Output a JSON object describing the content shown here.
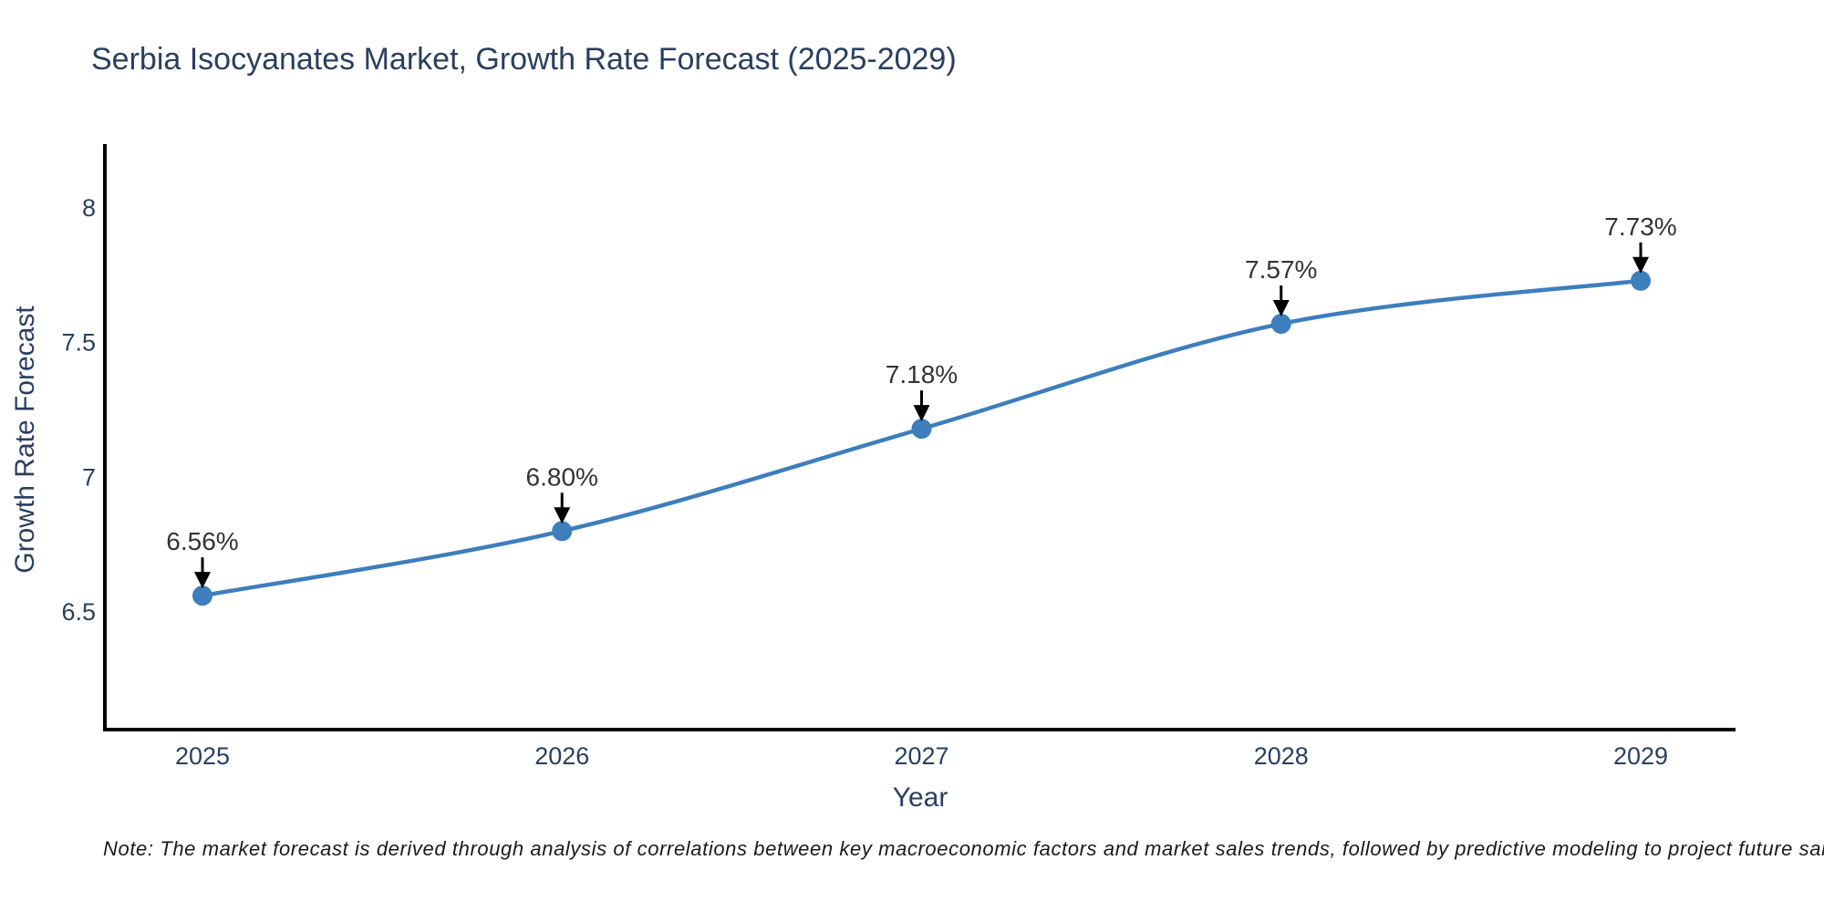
{
  "title": "Serbia Isocyanates Market, Growth Rate Forecast (2025-2029)",
  "note": "Note: The market forecast is derived through analysis of correlations between key macroeconomic factors and market sales trends, followed by predictive modeling to project future sales",
  "colors": {
    "line": "#3d7ebd",
    "marker": "#3d7ebd",
    "axis_line": "#000000",
    "title_text": "#2a3f5f",
    "tick_text": "#2a3f5f",
    "annotation_text": "#333333",
    "arrow": "#000000",
    "background": "#ffffff"
  },
  "chart_data": {
    "type": "line",
    "title": "Serbia Isocyanates Market, Growth Rate Forecast (2025-2029)",
    "xlabel": "Year",
    "ylabel": "Growth Rate Forecast",
    "x": [
      2025,
      2026,
      2027,
      2028,
      2029
    ],
    "series": [
      {
        "name": "Growth Rate Forecast",
        "values": [
          6.56,
          6.8,
          7.18,
          7.57,
          7.73
        ]
      }
    ],
    "point_labels": [
      "6.56%",
      "6.80%",
      "7.18%",
      "7.57%",
      "7.73%"
    ],
    "x_ticks": [
      2025,
      2026,
      2027,
      2028,
      2029
    ],
    "x_tick_labels": [
      "2025",
      "2026",
      "2027",
      "2028",
      "2029"
    ],
    "y_ticks": [
      6.5,
      7,
      7.5,
      8
    ],
    "y_tick_labels": [
      "6.5",
      "7",
      "7.5",
      "8"
    ],
    "xlim": [
      2024.7286,
      2029.2638
    ],
    "ylim": [
      6.0625,
      8.2375
    ],
    "grid": false,
    "legend_position": "none",
    "line_shape": "spline"
  }
}
